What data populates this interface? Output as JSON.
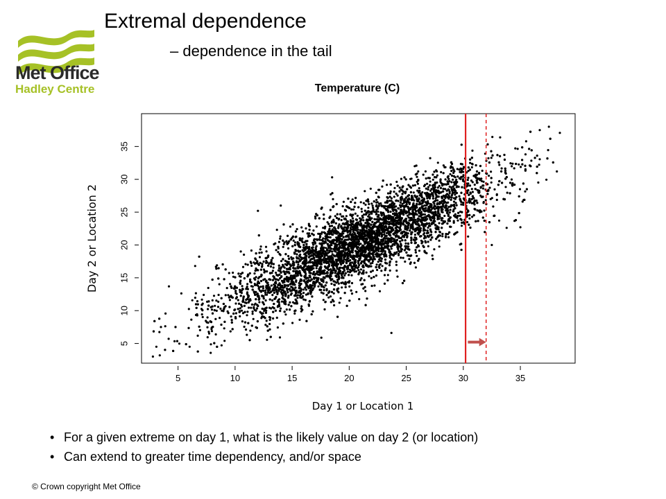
{
  "slide": {
    "title": "Extremal dependence",
    "subtitle": "– dependence in the tail",
    "bullets": [
      "For a given extreme on day 1, what is the likely value on day 2 (or location)",
      "Can extend to greater time dependency, and/or space"
    ],
    "copyright": "© Crown copyright   Met Office"
  },
  "logo": {
    "line1": "Met Office",
    "line2": "Hadley Centre",
    "color": "#a6c126"
  },
  "chart_data": {
    "type": "scatter",
    "title": "Temperature (C)",
    "xlabel": "Day 1 or Location 1",
    "ylabel": "Day 2 or Location 2",
    "xlim": [
      1.8,
      39.8
    ],
    "ylim": [
      2,
      40
    ],
    "xticks": [
      5,
      10,
      15,
      20,
      25,
      30,
      35
    ],
    "yticks": [
      5,
      10,
      15,
      20,
      25,
      30,
      35
    ],
    "grid": false,
    "point_count_approx": 6000,
    "point_color": "#000000",
    "correlation_approx": 0.85,
    "trend": {
      "slope": 0.8,
      "intercept": 3.5
    },
    "sample_points": [
      [
        2.8,
        3.0
      ],
      [
        3.1,
        4.5
      ],
      [
        3.5,
        7.5
      ],
      [
        4.2,
        13.7
      ],
      [
        6.5,
        16.8
      ],
      [
        10.5,
        19.0
      ],
      [
        12.0,
        25.2
      ],
      [
        14.0,
        26.0
      ],
      [
        18.5,
        30.3
      ],
      [
        23.7,
        6.6
      ],
      [
        32.5,
        20.0
      ],
      [
        33.8,
        22.6
      ],
      [
        35.0,
        22.7
      ],
      [
        36.7,
        37.5
      ],
      [
        38.2,
        31.2
      ],
      [
        37.5,
        38.0
      ]
    ],
    "threshold_line": {
      "x": 30.2,
      "style": "solid",
      "color": "#e02020"
    },
    "extended_line": {
      "x": 32.0,
      "style": "dashed",
      "color": "#e02020"
    },
    "arrow": {
      "from": 30.4,
      "to": 32.0,
      "y": 5.2,
      "color": "#c0504d"
    }
  }
}
